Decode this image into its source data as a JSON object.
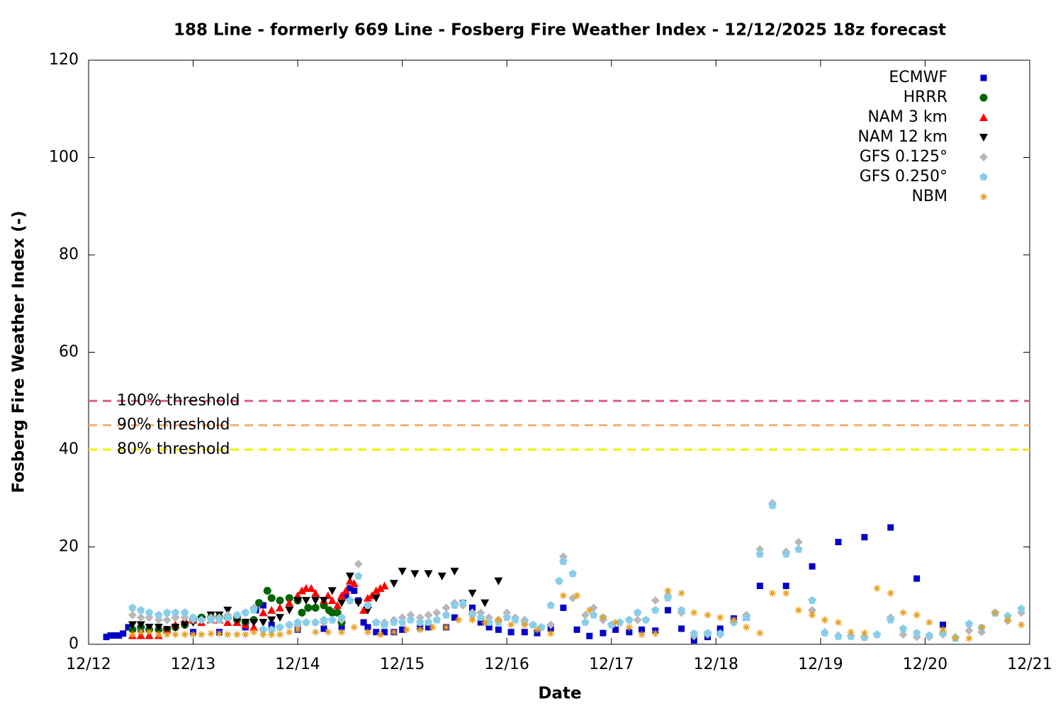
{
  "chart_data": {
    "type": "scatter",
    "title": "188 Line - formerly 669 Line - Fosberg Fire Weather Index - 12/12/2025 18z forecast",
    "x_label": "Date",
    "y_label": "Fosberg Fire Weather Index (-)",
    "xlim": [
      0,
      9
    ],
    "ylim": [
      0,
      120
    ],
    "xticks": [
      {
        "value": 0,
        "label": "12/12"
      },
      {
        "value": 1,
        "label": "12/13"
      },
      {
        "value": 2,
        "label": "12/14"
      },
      {
        "value": 3,
        "label": "12/15"
      },
      {
        "value": 4,
        "label": "12/16"
      },
      {
        "value": 5,
        "label": "12/17"
      },
      {
        "value": 6,
        "label": "12/18"
      },
      {
        "value": 7,
        "label": "12/19"
      },
      {
        "value": 8,
        "label": "12/20"
      },
      {
        "value": 9,
        "label": "12/21"
      }
    ],
    "yticks": [
      0,
      20,
      40,
      60,
      80,
      100,
      120
    ],
    "legend": "upper right",
    "thresholds": [
      {
        "label": "100% threshold",
        "value": 50,
        "color": "#e0607e"
      },
      {
        "label": "90% threshold",
        "value": 45,
        "color": "#f4b070"
      },
      {
        "label": "80% threshold",
        "value": 40,
        "color": "#f0f000"
      }
    ],
    "series": [
      {
        "name": "ECMWF",
        "color": "#0000c8",
        "marker": "square",
        "x": [
          0.17,
          0.21,
          0.25,
          0.29,
          0.33,
          0.38,
          0.5,
          0.75,
          1.0,
          1.25,
          1.5,
          1.6,
          1.67,
          1.75,
          2.0,
          2.25,
          2.42,
          2.46,
          2.5,
          2.54,
          2.58,
          2.63,
          2.67,
          2.75,
          2.83,
          2.92,
          3.0,
          3.17,
          3.25,
          3.42,
          3.5,
          3.58,
          3.67,
          3.75,
          3.83,
          3.92,
          4.04,
          4.17,
          4.29,
          4.42,
          4.54,
          4.67,
          4.79,
          4.92,
          5.04,
          5.17,
          5.29,
          5.42,
          5.54,
          5.67,
          5.79,
          5.92,
          6.04,
          6.17,
          6.29,
          6.42,
          6.67,
          6.92,
          7.17,
          7.42,
          7.67,
          7.92,
          8.17
        ],
        "values": [
          1.5,
          1.8,
          1.8,
          1.8,
          2.2,
          3.5,
          3,
          3,
          2.5,
          2.5,
          3.5,
          7,
          8,
          4,
          3,
          3.2,
          3.5,
          10,
          11.5,
          11,
          9,
          4.5,
          3.5,
          2.5,
          2.5,
          2.5,
          3,
          3.5,
          3.5,
          3.5,
          5.5,
          8.5,
          7.5,
          4.5,
          3.5,
          3,
          2.5,
          2.5,
          2.3,
          3.2,
          7.5,
          3,
          1.7,
          2.3,
          3,
          2.5,
          3,
          2.8,
          7,
          3.2,
          0.8,
          1.5,
          3.2,
          5.3,
          5.5,
          12,
          12,
          16,
          21,
          22,
          24,
          13.5,
          4
        ]
      },
      {
        "name": "HRRR",
        "color": "#006400",
        "marker": "circle",
        "x": [
          0.42,
          0.5,
          0.58,
          0.67,
          0.75,
          0.83,
          0.92,
          1.0,
          1.08,
          1.17,
          1.25,
          1.33,
          1.42,
          1.5,
          1.58,
          1.63,
          1.71,
          1.75,
          1.83,
          1.92,
          2.0,
          2.04,
          2.1,
          2.17,
          2.25,
          2.3,
          2.33,
          2.38,
          2.42
        ],
        "values": [
          3,
          3.5,
          3,
          3,
          3,
          3.5,
          4,
          5,
          5.5,
          5.5,
          5.5,
          5.5,
          5,
          4.5,
          5,
          8.5,
          11,
          9.5,
          9,
          9.5,
          9,
          6.5,
          7.5,
          7.5,
          8,
          7,
          6.5,
          6.5,
          4.5
        ]
      },
      {
        "name": "NAM 3 km",
        "color": "#ff0000",
        "marker": "triangle",
        "x": [
          0.42,
          0.5,
          0.58,
          0.67,
          0.75,
          0.83,
          0.92,
          1.0,
          1.08,
          1.17,
          1.25,
          1.33,
          1.42,
          1.5,
          1.58,
          1.67,
          1.75,
          1.83,
          1.92,
          2.0,
          2.04,
          2.08,
          2.13,
          2.17,
          2.25,
          2.29,
          2.33,
          2.38,
          2.42,
          2.46,
          2.5,
          2.54,
          2.63,
          2.67,
          2.71,
          2.75,
          2.79,
          2.83
        ],
        "values": [
          1.8,
          1.8,
          1.8,
          1.8,
          3,
          4,
          5,
          5,
          4.5,
          5,
          5,
          4.5,
          4.5,
          4,
          3.5,
          6.5,
          7,
          7.5,
          8.5,
          10,
          11,
          11.5,
          11.5,
          10.5,
          9,
          10,
          9,
          8,
          10,
          11,
          13,
          12.5,
          7,
          9.5,
          10,
          11,
          11.5,
          12
        ]
      },
      {
        "name": "NAM 12 km",
        "color": "#000000",
        "marker": "triangle-down",
        "x": [
          0.42,
          0.5,
          0.58,
          0.67,
          0.75,
          0.83,
          0.92,
          1.0,
          1.08,
          1.17,
          1.25,
          1.33,
          1.42,
          1.5,
          1.58,
          1.67,
          1.75,
          1.83,
          1.92,
          2.0,
          2.08,
          2.17,
          2.25,
          2.33,
          2.42,
          2.5,
          2.58,
          2.67,
          2.75,
          2.92,
          3.0,
          3.12,
          3.25,
          3.38,
          3.5,
          3.67,
          3.79,
          3.92
        ],
        "values": [
          4,
          4,
          3.5,
          3.5,
          3,
          3.5,
          4,
          4.5,
          5,
          6,
          6,
          7,
          5,
          4.5,
          4.5,
          4.5,
          5,
          5.5,
          7,
          9,
          9,
          9,
          9,
          11,
          8.5,
          14,
          8.5,
          7,
          9.5,
          12.5,
          15,
          14.5,
          14.5,
          14,
          15,
          10.5,
          8.5,
          13
        ]
      },
      {
        "name": "GFS 0.125°",
        "color": "#b8b8b8",
        "marker": "diamond",
        "x": [
          0.42,
          0.5,
          0.58,
          0.67,
          0.75,
          0.83,
          0.92,
          1.0,
          1.08,
          1.17,
          1.25,
          1.33,
          1.42,
          1.5,
          1.58,
          1.67,
          1.75,
          1.83,
          1.92,
          2.0,
          2.08,
          2.17,
          2.25,
          2.33,
          2.42,
          2.5,
          2.58,
          2.67,
          2.75,
          2.83,
          2.92,
          3.0,
          3.08,
          3.17,
          3.25,
          3.33,
          3.42,
          3.5,
          3.58,
          3.67,
          3.75,
          3.83,
          3.92,
          4.0,
          4.08,
          4.17,
          4.25,
          4.33,
          4.42,
          4.5,
          4.54,
          4.63,
          4.75,
          4.83,
          4.92,
          5.0,
          5.08,
          5.17,
          5.25,
          5.33,
          5.42,
          5.54,
          5.67,
          5.79,
          5.92,
          6.04,
          6.17,
          6.29,
          6.42,
          6.54,
          6.67,
          6.79,
          6.92,
          7.04,
          7.17,
          7.29,
          7.42,
          7.54,
          7.67,
          7.79,
          7.92,
          8.04,
          8.17,
          8.29,
          8.42,
          8.54,
          8.67,
          8.79,
          8.92
        ],
        "values": [
          6,
          5.5,
          5.5,
          5,
          5,
          5.5,
          5.5,
          5,
          5,
          5.5,
          5.5,
          6,
          6,
          6.5,
          7.5,
          3,
          3,
          3.5,
          4,
          4,
          4.5,
          4.5,
          4.5,
          5,
          5,
          9,
          16.5,
          8,
          4.5,
          4.5,
          5,
          5.5,
          6,
          5.5,
          6,
          6.5,
          7.5,
          8.5,
          8,
          6.5,
          6.5,
          5.5,
          5,
          6.5,
          5.5,
          5,
          4,
          3.5,
          4,
          13,
          18,
          9.5,
          6,
          7.5,
          5,
          4,
          4.5,
          5,
          5,
          5,
          9,
          10,
          6.5,
          1.7,
          2,
          2,
          4.5,
          6,
          19.5,
          29,
          19,
          21,
          7,
          2.5,
          1.8,
          1.8,
          1.5,
          2,
          5.5,
          2,
          1.5,
          1.5,
          2,
          1.5,
          2.8,
          2.5,
          6.5,
          4.8,
          6.5
        ]
      },
      {
        "name": "GFS 0.250°",
        "color": "#87ceeb",
        "marker": "pentagon",
        "x": [
          0.42,
          0.5,
          0.58,
          0.67,
          0.75,
          0.83,
          0.92,
          1.0,
          1.08,
          1.17,
          1.25,
          1.33,
          1.42,
          1.5,
          1.58,
          1.67,
          1.75,
          1.83,
          1.92,
          2.0,
          2.08,
          2.17,
          2.25,
          2.33,
          2.42,
          2.5,
          2.58,
          2.67,
          2.75,
          2.83,
          2.92,
          3.0,
          3.08,
          3.17,
          3.25,
          3.33,
          3.42,
          3.5,
          3.58,
          3.67,
          3.75,
          3.83,
          3.92,
          4.0,
          4.08,
          4.17,
          4.25,
          4.33,
          4.42,
          4.5,
          4.54,
          4.63,
          4.75,
          4.83,
          4.92,
          5.0,
          5.08,
          5.17,
          5.25,
          5.33,
          5.42,
          5.54,
          5.67,
          5.79,
          5.92,
          6.04,
          6.17,
          6.29,
          6.42,
          6.54,
          6.67,
          6.79,
          6.92,
          7.04,
          7.17,
          7.29,
          7.42,
          7.54,
          7.67,
          7.79,
          7.92,
          8.04,
          8.17,
          8.29,
          8.42,
          8.54,
          8.67,
          8.79,
          8.92
        ],
        "values": [
          7.5,
          7,
          6.5,
          6,
          6.5,
          6.5,
          6.5,
          5.5,
          5,
          5,
          5,
          5.5,
          6,
          6.5,
          7,
          3,
          3,
          3.5,
          4,
          4.5,
          4.5,
          4.5,
          5,
          5,
          5.5,
          9,
          14,
          8,
          4.5,
          4,
          4.5,
          4.5,
          5,
          4.5,
          4.5,
          5,
          6,
          8,
          8.5,
          6,
          5.5,
          4.5,
          4.5,
          5.5,
          5,
          4.5,
          4,
          3.5,
          8,
          13,
          17,
          14.5,
          4.5,
          6,
          5.5,
          4,
          4.5,
          5,
          6.5,
          5,
          7,
          9.5,
          7,
          2.2,
          2.3,
          2.2,
          4.5,
          5.5,
          18.5,
          28.5,
          18.5,
          19.5,
          9,
          2.3,
          1.6,
          1.6,
          1.4,
          2,
          5,
          3.2,
          2.3,
          1.8,
          2.3,
          1.2,
          4.2,
          3.4,
          6.4,
          5.8,
          7.3
        ]
      },
      {
        "name": "NBM",
        "color": "#e8a020",
        "marker": "star",
        "x": [
          0.42,
          0.5,
          0.58,
          0.67,
          0.75,
          0.83,
          0.92,
          1.0,
          1.08,
          1.17,
          1.25,
          1.33,
          1.42,
          1.5,
          1.58,
          1.67,
          1.75,
          1.83,
          1.92,
          2.0,
          2.17,
          2.29,
          2.42,
          2.54,
          2.67,
          2.79,
          2.92,
          3.04,
          3.17,
          3.29,
          3.42,
          3.54,
          3.67,
          3.79,
          3.92,
          4.04,
          4.17,
          4.29,
          4.42,
          4.54,
          4.67,
          4.79,
          4.92,
          5.04,
          5.17,
          5.29,
          5.42,
          5.54,
          5.67,
          5.79,
          5.92,
          6.04,
          6.17,
          6.29,
          6.42,
          6.54,
          6.67,
          6.79,
          6.92,
          7.04,
          7.17,
          7.29,
          7.42,
          7.54,
          7.67,
          7.79,
          7.92,
          8.04,
          8.17,
          8.29,
          8.42,
          8.54,
          8.67,
          8.79,
          8.92
        ],
        "values": [
          2,
          2.5,
          2.5,
          2,
          2,
          2,
          2,
          2,
          2,
          2.2,
          2.2,
          2,
          2,
          2,
          2.5,
          2,
          2,
          2,
          2.5,
          3,
          2.5,
          2.5,
          2.5,
          3.5,
          2.5,
          2,
          2.5,
          3,
          3,
          3.5,
          3.5,
          5,
          5,
          4.5,
          5,
          4,
          4,
          3,
          2.2,
          10,
          10,
          7,
          5.5,
          4.5,
          3.5,
          2,
          2.2,
          11,
          10.5,
          6.5,
          6,
          5.5,
          5,
          3.5,
          2.3,
          10.5,
          10.5,
          7,
          6,
          5,
          4.5,
          2.5,
          2.3,
          11.5,
          10.5,
          6.5,
          6,
          4.5,
          3,
          1.3,
          1.2,
          3.5,
          6.5,
          5,
          4
        ]
      }
    ]
  }
}
